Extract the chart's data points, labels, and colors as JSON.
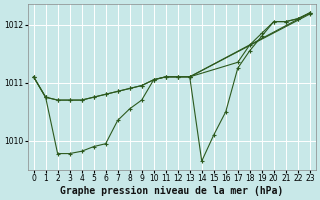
{
  "title": "Graphe pression niveau de la mer (hPa)",
  "bg_color": "#c8e8e8",
  "grid_color": "#ffffff",
  "line_color": "#2d5a1e",
  "xlim": [
    -0.5,
    23.5
  ],
  "ylim": [
    1009.5,
    1012.35
  ],
  "yticks": [
    1010,
    1011,
    1012
  ],
  "xticks": [
    0,
    1,
    2,
    3,
    4,
    5,
    6,
    7,
    8,
    9,
    10,
    11,
    12,
    13,
    14,
    15,
    16,
    17,
    18,
    19,
    20,
    21,
    22,
    23
  ],
  "series1": {
    "x": [
      0,
      1,
      2,
      3,
      4,
      5,
      6,
      7,
      8,
      9,
      10,
      11,
      12,
      13,
      23
    ],
    "y": [
      1011.1,
      1010.75,
      1010.7,
      1010.7,
      1010.7,
      1010.75,
      1010.8,
      1010.85,
      1010.9,
      1010.95,
      1011.05,
      1011.1,
      1011.1,
      1011.1,
      1012.2
    ]
  },
  "series2": {
    "x": [
      0,
      1,
      2,
      3,
      4,
      5,
      6,
      7,
      8,
      9,
      10,
      11,
      12,
      13,
      23
    ],
    "y": [
      1011.1,
      1010.75,
      1010.7,
      1010.7,
      1010.7,
      1010.75,
      1010.8,
      1010.85,
      1010.9,
      1010.95,
      1011.05,
      1011.1,
      1011.1,
      1011.1,
      1012.18
    ]
  },
  "series3": {
    "x": [
      0,
      1,
      2,
      3,
      4,
      5,
      6,
      7,
      8,
      9,
      10,
      11,
      12,
      13,
      14,
      15,
      16,
      17,
      18,
      19,
      20,
      21,
      22,
      23
    ],
    "y": [
      1011.1,
      1010.75,
      1009.78,
      1009.78,
      1009.82,
      1009.9,
      1009.95,
      1010.35,
      1010.55,
      1010.7,
      1011.05,
      1011.1,
      1011.1,
      1011.1,
      1009.65,
      1010.1,
      1010.5,
      1011.25,
      1011.55,
      1011.8,
      1012.05,
      1012.05,
      1012.1,
      1012.2
    ]
  },
  "series4": {
    "x": [
      13,
      17,
      18,
      19,
      20,
      21,
      22,
      23
    ],
    "y": [
      1011.1,
      1011.35,
      1011.65,
      1011.85,
      1012.05,
      1012.05,
      1012.1,
      1012.2
    ]
  },
  "title_fontsize": 7,
  "tick_fontsize": 5.5
}
